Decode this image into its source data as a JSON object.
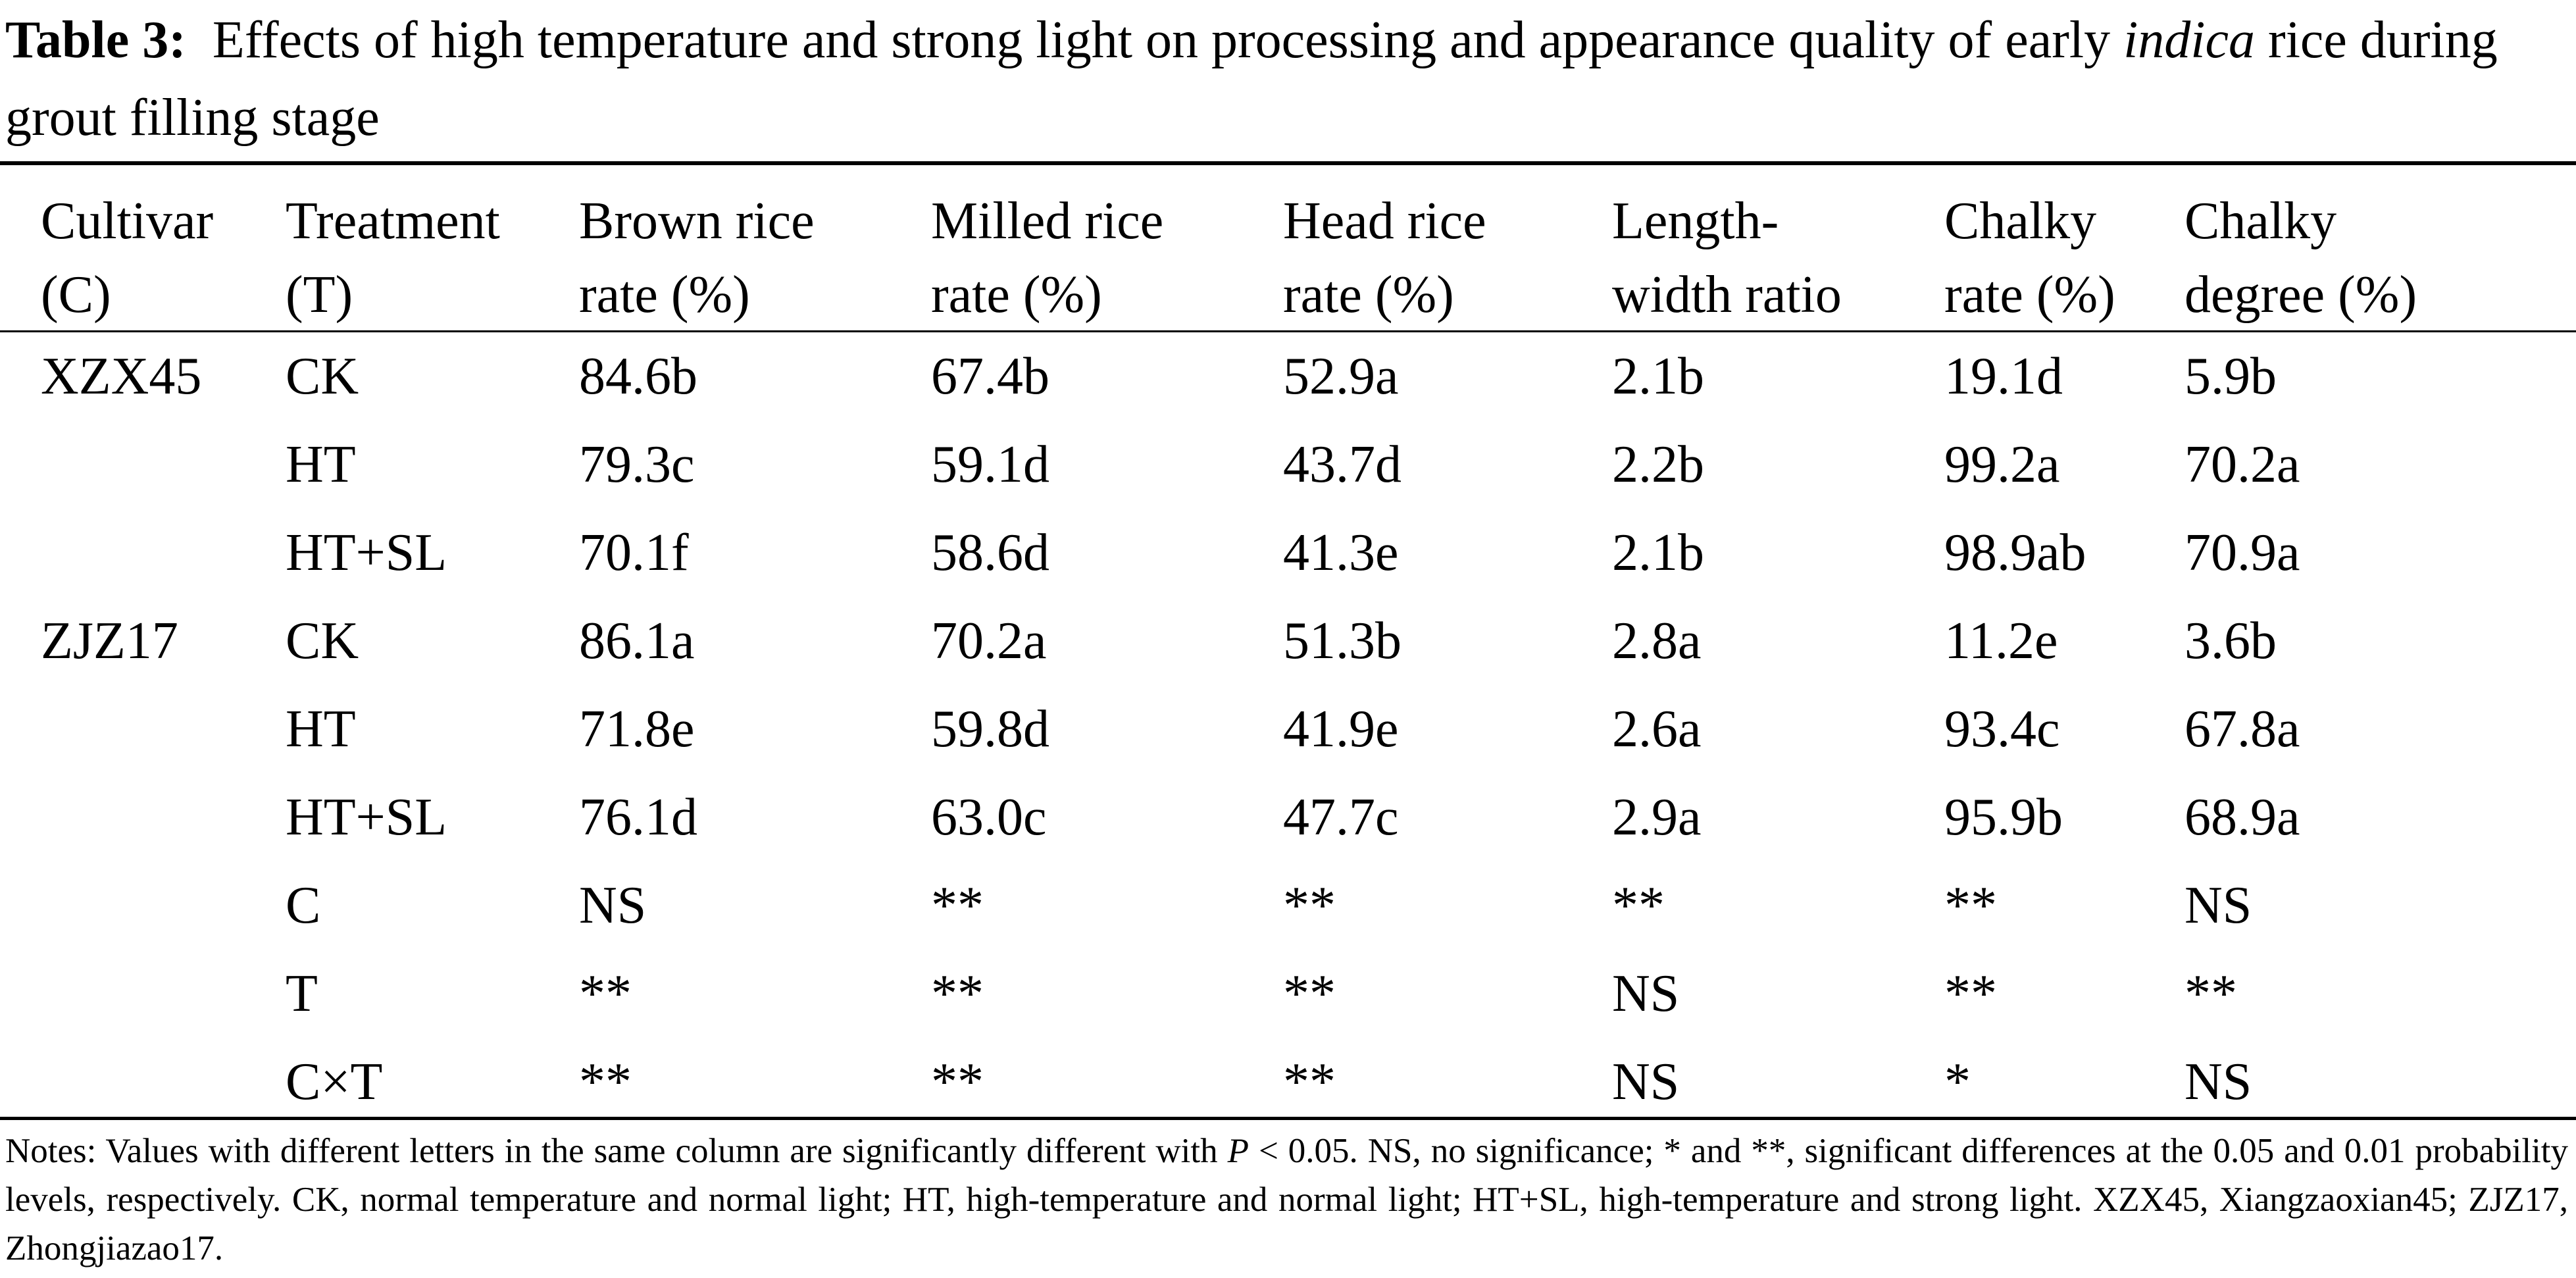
{
  "caption": {
    "label": "Table 3:",
    "text_before": "Effects of high temperature and strong light on processing and appearance quality of early",
    "italic": "indica",
    "text_after": "rice during grout filling stage"
  },
  "table": {
    "headers": [
      [
        "Cultivar",
        "(C)"
      ],
      [
        "Treatment",
        "(T)"
      ],
      [
        "Brown rice",
        "rate (%)"
      ],
      [
        "Milled rice",
        "rate (%)"
      ],
      [
        "Head rice",
        "rate (%)"
      ],
      [
        "Length-",
        "width ratio"
      ],
      [
        "Chalky",
        "rate (%)"
      ],
      [
        "Chalky",
        "degree (%)"
      ]
    ],
    "rows": [
      [
        "XZX45",
        "CK",
        "84.6b",
        "67.4b",
        "52.9a",
        "2.1b",
        "19.1d",
        "5.9b"
      ],
      [
        "",
        "HT",
        "79.3c",
        "59.1d",
        "43.7d",
        "2.2b",
        "99.2a",
        "70.2a"
      ],
      [
        "",
        "HT+SL",
        "70.1f",
        "58.6d",
        "41.3e",
        "2.1b",
        "98.9ab",
        "70.9a"
      ],
      [
        "ZJZ17",
        "CK",
        "86.1a",
        "70.2a",
        "51.3b",
        "2.8a",
        "11.2e",
        "3.6b"
      ],
      [
        "",
        "HT",
        "71.8e",
        "59.8d",
        "41.9e",
        "2.6a",
        "93.4c",
        "67.8a"
      ],
      [
        "",
        "HT+SL",
        "76.1d",
        "63.0c",
        "47.7c",
        "2.9a",
        "95.9b",
        "68.9a"
      ],
      [
        "",
        "C",
        "NS",
        "**",
        "**",
        "**",
        "**",
        "NS"
      ],
      [
        "",
        "T",
        "**",
        "**",
        "**",
        "NS",
        "**",
        "**"
      ],
      [
        "",
        "C×T",
        "**",
        "**",
        "**",
        "NS",
        "*",
        "NS"
      ]
    ]
  },
  "notes": {
    "part1": "Notes: Values with different letters in the same column are significantly different with",
    "p_symbol": "P",
    "part2": "< 0.05. NS, no significance; * and **, significant differences at the 0.05 and 0.01 probability levels, respectively. CK, normal temperature and normal light; HT, high-temperature and normal light; HT+SL, high-temperature and strong light. XZX45, Xiangzaoxian45; ZJZ17, Zhongjiazao17."
  }
}
